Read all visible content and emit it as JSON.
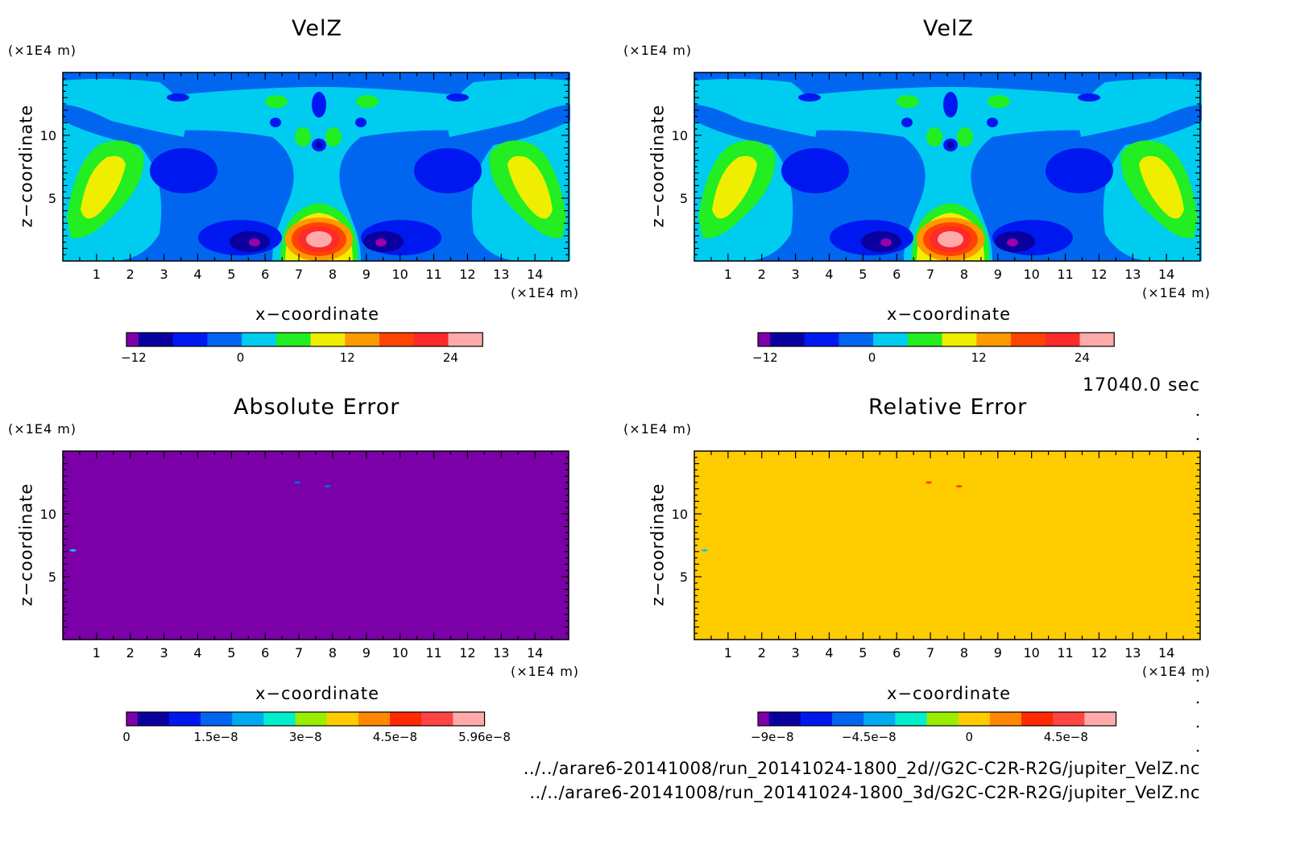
{
  "time_label": "17040.0 sec",
  "file_paths": [
    "../../arare6-20141008/run_20141024-1800_2d//G2C-C2R-R2G/jupiter_VelZ.nc",
    "../../arare6-20141008/run_20141024-1800_3d/G2C-C2R-R2G/jupiter_VelZ.nc"
  ],
  "panel_unit_label": "(×1E4 m)",
  "chart_data": [
    {
      "type": "heatmap",
      "title": "VelZ",
      "xlabel": "x−coordinate",
      "ylabel": "z−coordinate",
      "x_unit": "(×1E4 m)",
      "y_unit": "(×1E4 m)",
      "xlim": [
        0,
        15
      ],
      "ylim": [
        0,
        15
      ],
      "x_ticks": [
        "1",
        "2",
        "3",
        "4",
        "5",
        "6",
        "7",
        "8",
        "9",
        "10",
        "11",
        "12",
        "13",
        "14"
      ],
      "y_ticks": [
        "5",
        "10"
      ],
      "colorbar": {
        "tick_labels": [
          "−12",
          "0",
          "12",
          "24"
        ],
        "colors": [
          "#7d00a8",
          "#0a00a0",
          "#0018f0",
          "#0066f0",
          "#00ccf0",
          "#22ee22",
          "#f0ee00",
          "#ff9900",
          "#ff4400",
          "#ff2a2a",
          "#ffaaaa"
        ]
      }
    },
    {
      "type": "heatmap",
      "title": "VelZ",
      "xlabel": "x−coordinate",
      "ylabel": "z−coordinate",
      "x_unit": "(×1E4 m)",
      "y_unit": "(×1E4 m)",
      "xlim": [
        0,
        15
      ],
      "ylim": [
        0,
        15
      ],
      "x_ticks": [
        "1",
        "2",
        "3",
        "4",
        "5",
        "6",
        "7",
        "8",
        "9",
        "10",
        "11",
        "12",
        "13",
        "14"
      ],
      "y_ticks": [
        "5",
        "10"
      ],
      "colorbar": {
        "tick_labels": [
          "−12",
          "0",
          "12",
          "24"
        ],
        "colors": [
          "#7d00a8",
          "#0a00a0",
          "#0018f0",
          "#0066f0",
          "#00ccf0",
          "#22ee22",
          "#f0ee00",
          "#ff9900",
          "#ff4400",
          "#ff2a2a",
          "#ffaaaa"
        ]
      }
    },
    {
      "type": "heatmap",
      "title": "Absolute Error",
      "xlabel": "x−coordinate",
      "ylabel": "z−coordinate",
      "x_unit": "(×1E4 m)",
      "y_unit": "(×1E4 m)",
      "xlim": [
        0,
        15
      ],
      "ylim": [
        0,
        15
      ],
      "x_ticks": [
        "1",
        "2",
        "3",
        "4",
        "5",
        "6",
        "7",
        "8",
        "9",
        "10",
        "11",
        "12",
        "13",
        "14"
      ],
      "y_ticks": [
        "5",
        "10"
      ],
      "fill_color": "#7b00a8",
      "colorbar": {
        "tick_labels": [
          "0",
          "1.5e−8",
          "3e−8",
          "4.5e−8",
          "5.96e−8"
        ],
        "colors": [
          "#7d00a8",
          "#0a00a0",
          "#0018f0",
          "#0066f0",
          "#00aaf0",
          "#00eecc",
          "#99ee00",
          "#ffcc00",
          "#ff8800",
          "#ff2a00",
          "#ff4444",
          "#ffaaaa"
        ]
      }
    },
    {
      "type": "heatmap",
      "title": "Relative Error",
      "xlabel": "x−coordinate",
      "ylabel": "z−coordinate",
      "x_unit": "(×1E4 m)",
      "y_unit": "(×1E4 m)",
      "xlim": [
        0,
        15
      ],
      "ylim": [
        0,
        15
      ],
      "x_ticks": [
        "1",
        "2",
        "3",
        "4",
        "5",
        "6",
        "7",
        "8",
        "9",
        "10",
        "11",
        "12",
        "13",
        "14"
      ],
      "y_ticks": [
        "5",
        "10"
      ],
      "fill_color": "#ffcc00",
      "colorbar": {
        "tick_labels": [
          "−9e−8",
          "−4.5e−8",
          "0",
          "4.5e−8"
        ],
        "colors": [
          "#7d00a8",
          "#0a00a0",
          "#0018f0",
          "#0066f0",
          "#00aaf0",
          "#00eecc",
          "#99ee00",
          "#ffcc00",
          "#ff8800",
          "#ff2a00",
          "#ff4444",
          "#ffaaaa"
        ]
      }
    }
  ]
}
